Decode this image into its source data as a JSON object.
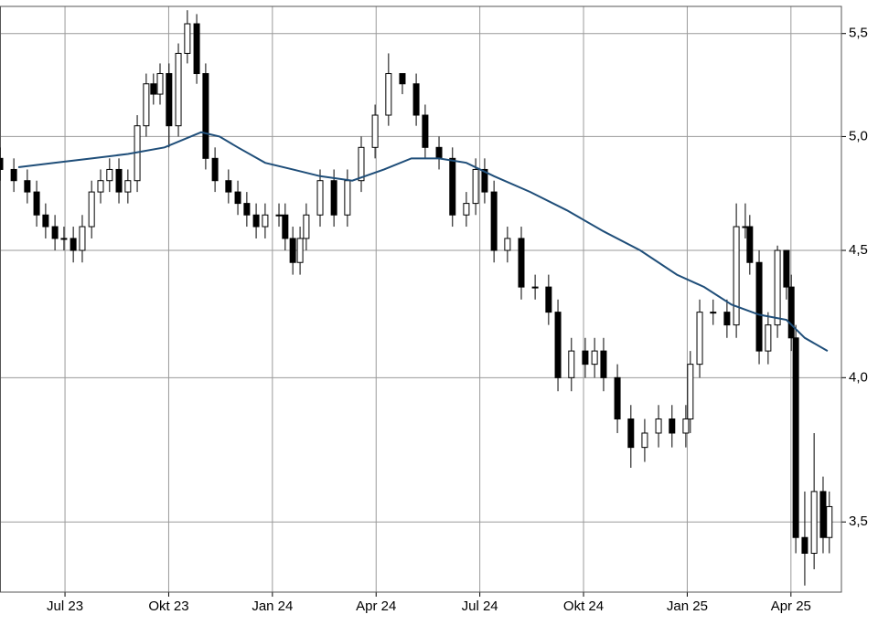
{
  "chart_data": {
    "type": "candlestick",
    "ylog": true,
    "grid": true,
    "candle_color": "#000000",
    "up_fill": "#ffffff",
    "xlim": [
      5.12,
      29.46
    ],
    "ylim": [
      3.28,
      5.64
    ],
    "xticks": [
      {
        "value": 7,
        "label": "Jul 23"
      },
      {
        "value": 10,
        "label": "Okt 23"
      },
      {
        "value": 13,
        "label": "Jan 24"
      },
      {
        "value": 16,
        "label": "Apr 24"
      },
      {
        "value": 19,
        "label": "Jul 24"
      },
      {
        "value": 22,
        "label": "Okt 24"
      },
      {
        "value": 25,
        "label": "Jan 25"
      },
      {
        "value": 28,
        "label": "Apr 25"
      }
    ],
    "yticks": [
      {
        "value": 3.5,
        "label": "3,5"
      },
      {
        "value": 4.0,
        "label": "4,0"
      },
      {
        "value": 4.5,
        "label": "4,5"
      },
      {
        "value": 5.0,
        "label": "5,0"
      },
      {
        "value": 5.5,
        "label": "5,5"
      }
    ],
    "x": [
      5.12,
      5.52,
      5.91,
      6.18,
      6.44,
      6.71,
      6.97,
      7.24,
      7.5,
      7.77,
      8.03,
      8.29,
      8.56,
      8.82,
      9.09,
      9.35,
      9.56,
      9.75,
      10.01,
      10.28,
      10.54,
      10.81,
      11.07,
      11.34,
      11.73,
      12.0,
      12.26,
      12.53,
      12.79,
      13.19,
      13.37,
      13.59,
      13.8,
      13.98,
      14.38,
      14.78,
      15.17,
      15.57,
      15.97,
      16.36,
      16.76,
      17.16,
      17.42,
      17.82,
      18.21,
      18.61,
      18.88,
      19.14,
      19.41,
      19.8,
      20.2,
      20.6,
      20.99,
      21.26,
      21.65,
      22.05,
      22.32,
      22.58,
      22.98,
      23.37,
      23.77,
      24.17,
      24.56,
      24.96,
      25.09,
      25.36,
      25.75,
      26.15,
      26.42,
      26.68,
      26.81,
      27.08,
      27.34,
      27.61,
      27.87,
      28.01,
      28.14,
      28.4,
      28.67,
      28.93,
      29.11
    ],
    "open": [
      4.9,
      4.85,
      4.8,
      4.75,
      4.65,
      4.6,
      4.55,
      4.55,
      4.5,
      4.6,
      4.75,
      4.8,
      4.85,
      4.75,
      4.8,
      5.05,
      5.25,
      5.2,
      5.3,
      5.05,
      5.4,
      5.55,
      5.3,
      4.9,
      4.8,
      4.75,
      4.7,
      4.65,
      4.6,
      4.65,
      4.65,
      4.55,
      4.45,
      4.55,
      4.65,
      4.8,
      4.65,
      4.8,
      4.95,
      5.1,
      5.3,
      5.25,
      5.1,
      4.95,
      4.9,
      4.65,
      4.7,
      4.85,
      4.75,
      4.5,
      4.55,
      4.35,
      4.35,
      4.25,
      4.0,
      4.1,
      4.05,
      4.1,
      4.0,
      3.85,
      3.75,
      3.8,
      3.85,
      3.8,
      3.85,
      4.05,
      4.25,
      4.25,
      4.2,
      4.6,
      4.6,
      4.45,
      4.1,
      4.2,
      4.5,
      4.35,
      4.15,
      3.45,
      3.4,
      3.6,
      3.45
    ],
    "high": [
      4.95,
      4.9,
      4.85,
      4.8,
      4.7,
      4.65,
      4.6,
      4.6,
      4.65,
      4.8,
      4.85,
      4.9,
      4.9,
      4.85,
      5.1,
      5.3,
      5.3,
      5.35,
      5.35,
      5.45,
      5.62,
      5.6,
      5.35,
      4.95,
      4.85,
      4.8,
      4.75,
      4.7,
      4.7,
      4.7,
      4.7,
      4.6,
      4.6,
      4.7,
      4.85,
      4.85,
      4.85,
      5.0,
      5.15,
      5.4,
      5.3,
      5.3,
      5.15,
      5.0,
      4.95,
      4.75,
      4.9,
      4.9,
      4.8,
      4.6,
      4.6,
      4.4,
      4.4,
      4.3,
      4.15,
      4.15,
      4.15,
      4.15,
      4.05,
      3.9,
      3.85,
      3.9,
      3.9,
      3.9,
      4.1,
      4.3,
      4.3,
      4.3,
      4.7,
      4.7,
      4.65,
      4.5,
      4.25,
      4.52,
      4.5,
      4.4,
      4.2,
      3.6,
      3.8,
      3.65,
      3.6
    ],
    "low": [
      4.8,
      4.75,
      4.7,
      4.6,
      4.55,
      4.5,
      4.5,
      4.45,
      4.45,
      4.55,
      4.7,
      4.75,
      4.7,
      4.7,
      4.75,
      5.0,
      5.15,
      5.15,
      4.95,
      5.0,
      5.35,
      5.25,
      4.85,
      4.75,
      4.7,
      4.65,
      4.6,
      4.55,
      4.55,
      4.6,
      4.5,
      4.4,
      4.4,
      4.5,
      4.6,
      4.6,
      4.6,
      4.75,
      4.9,
      5.05,
      5.2,
      5.05,
      4.9,
      4.85,
      4.6,
      4.6,
      4.65,
      4.7,
      4.45,
      4.45,
      4.3,
      4.3,
      4.2,
      3.95,
      3.95,
      4.0,
      4.0,
      3.95,
      3.8,
      3.68,
      3.7,
      3.75,
      3.75,
      3.75,
      3.8,
      4.0,
      4.2,
      4.15,
      4.15,
      4.55,
      4.4,
      4.05,
      4.05,
      4.15,
      4.3,
      4.1,
      3.4,
      3.3,
      3.35,
      3.4,
      3.4
    ],
    "close": [
      4.85,
      4.8,
      4.75,
      4.65,
      4.6,
      4.55,
      4.55,
      4.5,
      4.6,
      4.75,
      4.8,
      4.85,
      4.75,
      4.8,
      5.05,
      5.25,
      5.2,
      5.3,
      5.05,
      5.4,
      5.55,
      5.3,
      4.9,
      4.8,
      4.75,
      4.7,
      4.65,
      4.6,
      4.65,
      4.65,
      4.55,
      4.45,
      4.55,
      4.65,
      4.8,
      4.65,
      4.8,
      4.95,
      5.1,
      5.3,
      5.25,
      5.1,
      4.95,
      4.9,
      4.65,
      4.7,
      4.85,
      4.75,
      4.5,
      4.55,
      4.35,
      4.35,
      4.25,
      4.0,
      4.1,
      4.05,
      4.1,
      4.0,
      3.85,
      3.75,
      3.8,
      3.85,
      3.8,
      3.85,
      4.05,
      4.25,
      4.25,
      4.2,
      4.6,
      4.6,
      4.45,
      4.1,
      4.2,
      4.5,
      4.35,
      4.15,
      3.45,
      3.4,
      3.6,
      3.45,
      3.55
    ],
    "moving_average": {
      "color": "#1f4e79",
      "x": [
        5.65,
        6.71,
        7.77,
        8.82,
        9.88,
        10.94,
        11.47,
        12.0,
        12.79,
        13.59,
        14.38,
        15.31,
        16.23,
        17.02,
        17.82,
        18.61,
        19.41,
        20.46,
        21.52,
        22.58,
        23.64,
        24.7,
        25.49,
        26.28,
        27.08,
        27.87,
        28.4,
        29.06
      ],
      "values": [
        4.86,
        4.88,
        4.9,
        4.92,
        4.95,
        5.02,
        5.0,
        4.95,
        4.88,
        4.85,
        4.82,
        4.8,
        4.85,
        4.9,
        4.9,
        4.88,
        4.82,
        4.75,
        4.67,
        4.58,
        4.5,
        4.4,
        4.35,
        4.28,
        4.24,
        4.22,
        4.15,
        4.1
      ]
    }
  }
}
